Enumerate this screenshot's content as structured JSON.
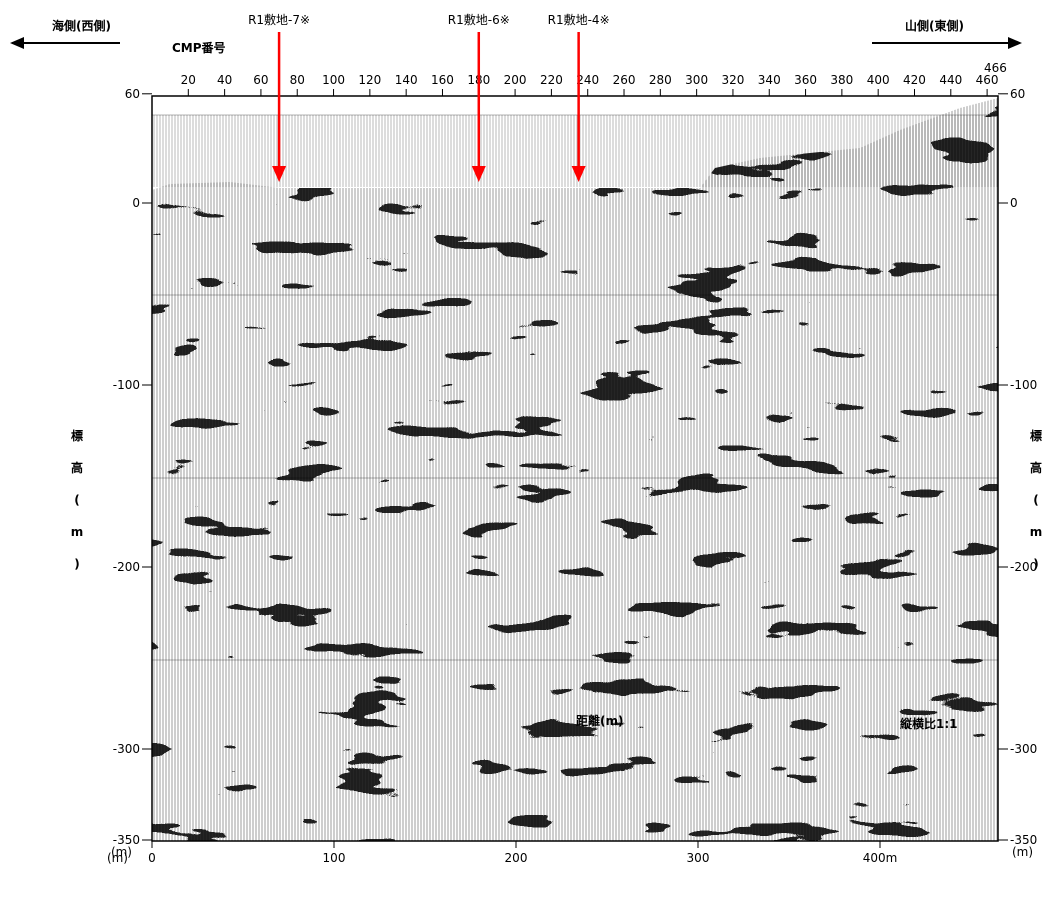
{
  "header": {
    "west_label": "海側(西側)",
    "east_label": "山側(東側)",
    "cmp_label": "CMP番号",
    "cmp_end": "466"
  },
  "boreholes": [
    {
      "label": "R1敷地-7※",
      "cmp": 70
    },
    {
      "label": "R1敷地-6※",
      "cmp": 180
    },
    {
      "label": "R1敷地-4※",
      "cmp": 235
    }
  ],
  "axes": {
    "cmp_ticks": [
      "20",
      "40",
      "60",
      "80",
      "100",
      "120",
      "140",
      "160",
      "180",
      "200",
      "220",
      "240",
      "260",
      "280",
      "300",
      "320",
      "340",
      "360",
      "380",
      "400",
      "420",
      "440",
      "460"
    ],
    "y_ticks": [
      "60",
      "0",
      "-100",
      "-200",
      "-300",
      "-350"
    ],
    "y_unit": "(m)",
    "y_title": "標高(m)",
    "x_ticks": [
      "0",
      "100",
      "200",
      "300",
      "400m"
    ],
    "x_unit": "(m)",
    "x_title": "距離(m)",
    "aspect_label": "縦横比1:1"
  },
  "colors": {
    "arrow": "#ff0000",
    "trace": "#000000"
  }
}
